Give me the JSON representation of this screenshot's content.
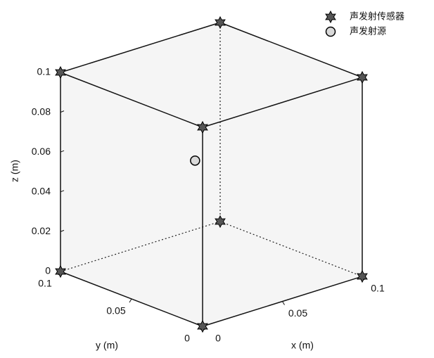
{
  "chart_data": {
    "type": "scatter3d",
    "xlabel": "x (m)",
    "ylabel": "y (m)",
    "zlabel": "z (m)",
    "xlim": [
      0,
      0.1
    ],
    "ylim": [
      0,
      0.1
    ],
    "zlim": [
      0,
      0.1
    ],
    "xticks": [
      0,
      0.05,
      0.1
    ],
    "yticks": [
      0,
      0.05,
      0.1
    ],
    "zticks": [
      0,
      0.02,
      0.04,
      0.06,
      0.08,
      0.1
    ],
    "legend": "upper right",
    "series": [
      {
        "name": "声发射传感器",
        "marker": "star",
        "color": "#555555",
        "x": [
          0,
          0.1,
          0.1,
          0,
          0,
          0.1,
          0.1,
          0
        ],
        "y": [
          0,
          0,
          0.1,
          0.1,
          0,
          0,
          0.1,
          0.1
        ],
        "z": [
          0,
          0,
          0,
          0,
          0.1,
          0.1,
          0.1,
          0.1
        ]
      },
      {
        "name": "声发射源",
        "marker": "circle",
        "color": "#d9d9d9",
        "x": [
          0.03
        ],
        "y": [
          0.039
        ],
        "z": [
          0.065
        ]
      }
    ]
  }
}
